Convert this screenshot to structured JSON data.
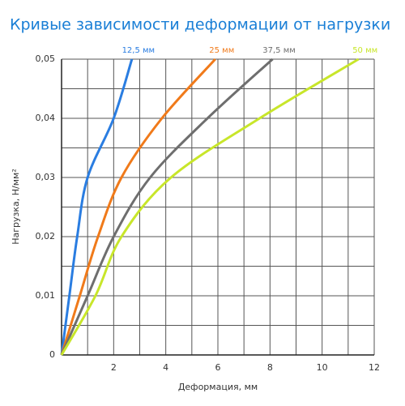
{
  "chart_data": {
    "type": "line",
    "title": "Кривые зависимости деформации от нагрузки",
    "xlabel": "Деформация, мм",
    "ylabel": "Нагрузка, Н/мм²",
    "xlim": [
      0,
      12
    ],
    "ylim": [
      0,
      0.05
    ],
    "xticks": [
      2,
      4,
      6,
      8,
      10,
      12
    ],
    "xgrid": [
      1,
      2,
      3,
      4,
      5,
      6,
      7,
      8,
      9,
      10,
      11,
      12
    ],
    "yticks": [
      0,
      {
        "value": 0.01,
        "label": "0,01"
      },
      {
        "value": 0.02,
        "label": "0,02"
      },
      {
        "value": 0.03,
        "label": "0,03"
      },
      {
        "value": 0.04,
        "label": "0,04"
      },
      {
        "value": 0.05,
        "label": "0,05"
      }
    ],
    "ygrid": [
      0.005,
      0.01,
      0.015,
      0.02,
      0.025,
      0.03,
      0.035,
      0.04,
      0.045,
      0.05
    ],
    "grid": true,
    "series": [
      {
        "name": "12,5 мм",
        "color": "#2a7de1",
        "x": [
          0,
          0.3,
          0.6,
          1.0,
          2.0,
          2.7
        ],
        "values": [
          0,
          0.01,
          0.02,
          0.03,
          0.04,
          0.05
        ]
      },
      {
        "name": "25 мм",
        "color": "#f07a1a",
        "x": [
          0,
          0.7,
          1.4,
          2.3,
          3.85,
          5.9
        ],
        "values": [
          0,
          0.01,
          0.02,
          0.03,
          0.04,
          0.05
        ]
      },
      {
        "name": "37,5 мм",
        "color": "#6e6e6e",
        "x": [
          0,
          1.0,
          2.0,
          3.4,
          5.6,
          8.1
        ],
        "values": [
          0,
          0.01,
          0.02,
          0.03,
          0.04,
          0.05
        ]
      },
      {
        "name": "50 мм",
        "color": "#c8e62a",
        "x": [
          0,
          1.3,
          2.3,
          4.2,
          7.6,
          11.4
        ],
        "values": [
          0,
          0.01,
          0.02,
          0.03,
          0.04,
          0.05
        ]
      }
    ]
  }
}
